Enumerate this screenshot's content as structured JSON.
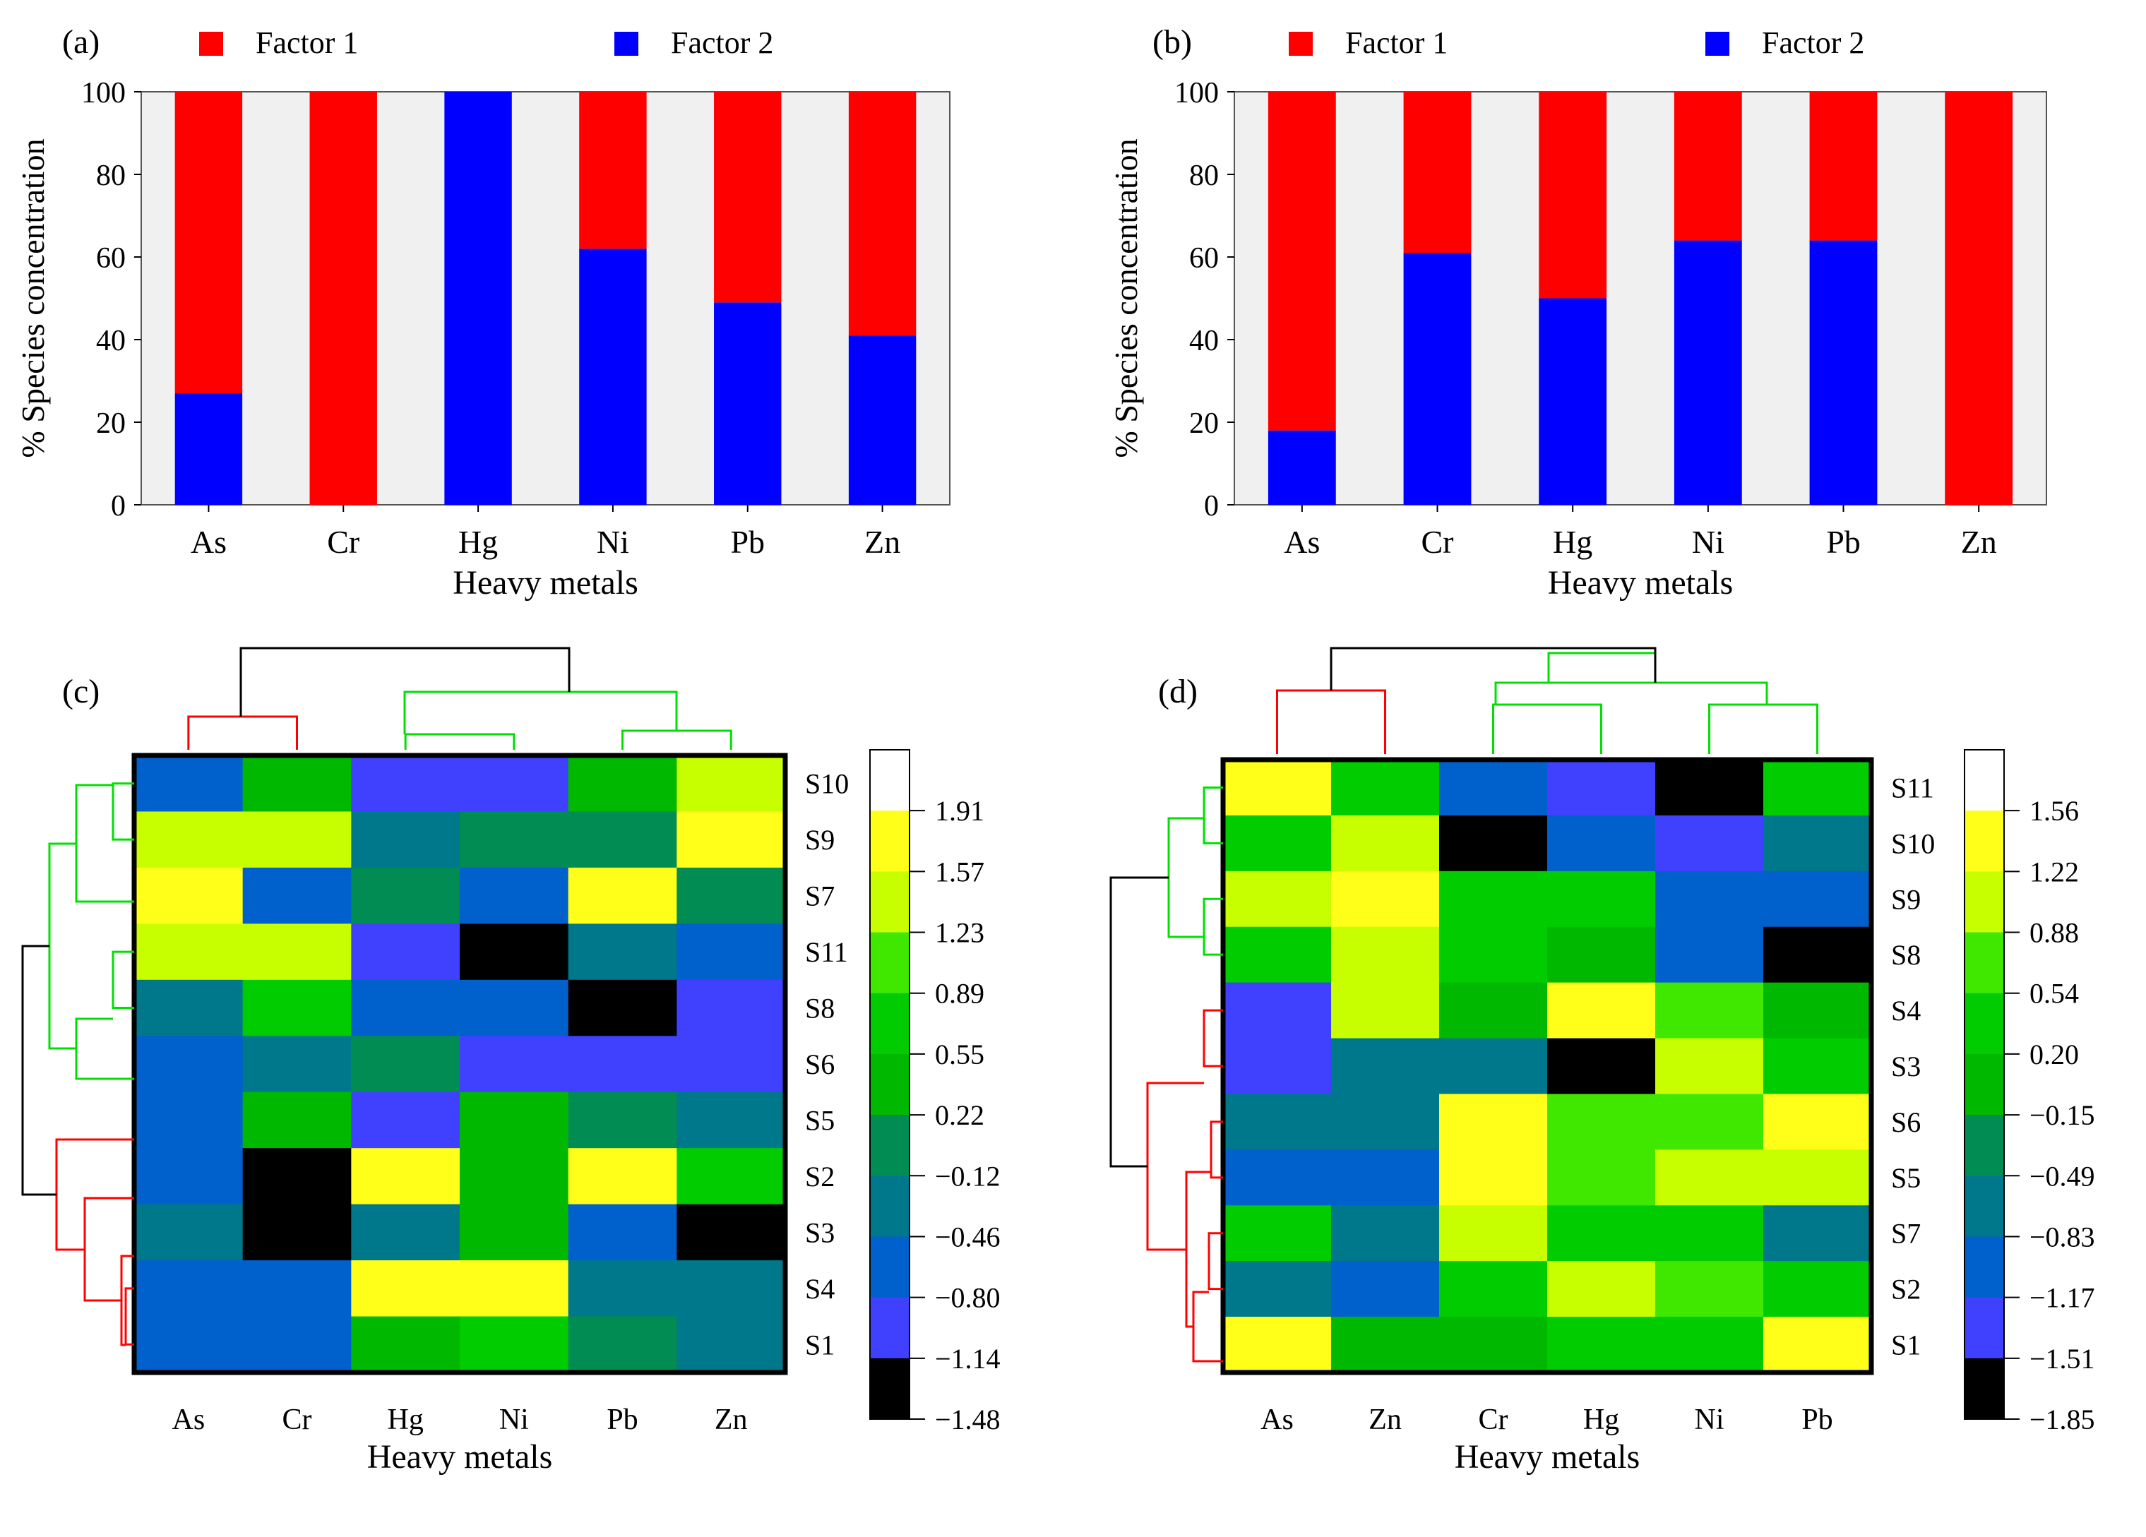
{
  "colors": {
    "factor1": "#ff0000",
    "factor2": "#0000ff",
    "plot_bg": "#f0f0f0",
    "cluster_red": "#ff0000",
    "cluster_green": "#00e000",
    "dendro_black": "#000000"
  },
  "chart_data": [
    {
      "id": "a",
      "type": "bar",
      "stacked": true,
      "panel_label": "(a)",
      "legend": [
        "Factor 1",
        "Factor 2"
      ],
      "xlabel": "Heavy metals",
      "ylabel": "% Species concentration",
      "ylim": [
        0,
        100
      ],
      "yticks": [
        0,
        20,
        40,
        60,
        80,
        100
      ],
      "categories": [
        "As",
        "Cr",
        "Hg",
        "Ni",
        "Pb",
        "Zn"
      ],
      "series": [
        {
          "name": "Factor 2",
          "values": [
            27,
            0,
            100,
            62,
            49,
            41
          ]
        },
        {
          "name": "Factor 1",
          "values": [
            73,
            100,
            0,
            38,
            51,
            59
          ]
        }
      ]
    },
    {
      "id": "b",
      "type": "bar",
      "stacked": true,
      "panel_label": "(b)",
      "legend": [
        "Factor 1",
        "Factor 2"
      ],
      "xlabel": "Heavy metals",
      "ylabel": "% Species concentration",
      "ylim": [
        0,
        100
      ],
      "yticks": [
        0,
        20,
        40,
        60,
        80,
        100
      ],
      "categories": [
        "As",
        "Cr",
        "Hg",
        "Ni",
        "Pb",
        "Zn"
      ],
      "series": [
        {
          "name": "Factor 2",
          "values": [
            18,
            61,
            50,
            64,
            64,
            0
          ]
        },
        {
          "name": "Factor 1",
          "values": [
            82,
            39,
            50,
            36,
            36,
            100
          ]
        }
      ]
    },
    {
      "id": "c",
      "type": "heatmap",
      "panel_label": "(c)",
      "xlabel": "Heavy metals",
      "columns": [
        "As",
        "Cr",
        "Hg",
        "Ni",
        "Pb",
        "Zn"
      ],
      "rows": [
        "S10",
        "S9",
        "S7",
        "S11",
        "S8",
        "S6",
        "S5",
        "S2",
        "S3",
        "S4",
        "S1"
      ],
      "colorbar_ticks": [
        "1.91",
        "1.57",
        "1.23",
        "0.89",
        "0.55",
        "0.22",
        "−0.12",
        "−0.46",
        "−0.80",
        "−1.14",
        "−1.48"
      ],
      "values": [
        [
          -0.63,
          0.38,
          -0.97,
          -0.97,
          0.38,
          1.4
        ],
        [
          1.4,
          1.4,
          -0.29,
          0.05,
          0.05,
          1.74
        ],
        [
          1.74,
          -0.63,
          0.05,
          -0.63,
          1.74,
          0.05
        ],
        [
          1.4,
          1.4,
          -0.97,
          -1.31,
          -0.29,
          -0.63
        ],
        [
          -0.29,
          0.72,
          -0.63,
          -0.63,
          -1.31,
          -0.97
        ],
        [
          -0.63,
          -0.29,
          0.05,
          -0.97,
          -0.97,
          -0.97
        ],
        [
          -0.63,
          0.38,
          -0.97,
          0.38,
          0.05,
          -0.29
        ],
        [
          -0.63,
          -1.31,
          1.74,
          0.38,
          1.74,
          0.72
        ],
        [
          -0.29,
          -1.31,
          -0.29,
          0.38,
          -0.63,
          -1.31
        ],
        [
          -0.63,
          -0.63,
          1.74,
          1.74,
          -0.29,
          -0.29
        ],
        [
          -0.63,
          -0.63,
          0.38,
          0.72,
          0.05,
          -0.29
        ]
      ]
    },
    {
      "id": "d",
      "type": "heatmap",
      "panel_label": "(d)",
      "xlabel": "Heavy metals",
      "columns": [
        "As",
        "Zn",
        "Cr",
        "Hg",
        "Ni",
        "Pb"
      ],
      "rows": [
        "S11",
        "S10",
        "S9",
        "S8",
        "S4",
        "S3",
        "S6",
        "S5",
        "S7",
        "S2",
        "S1"
      ],
      "colorbar_ticks": [
        "1.56",
        "1.22",
        "0.88",
        "0.54",
        "0.20",
        "−0.15",
        "−0.49",
        "−0.83",
        "−1.17",
        "−1.51",
        "−1.85"
      ],
      "values": [
        [
          1.39,
          0.37,
          -1.0,
          -1.34,
          -1.68,
          0.37
        ],
        [
          0.37,
          1.05,
          -1.68,
          -1.0,
          -1.34,
          -0.66
        ],
        [
          1.05,
          1.39,
          0.37,
          0.37,
          -1.0,
          -1.0
        ],
        [
          0.37,
          1.05,
          0.37,
          0.03,
          -1.0,
          -1.68
        ],
        [
          -1.34,
          1.05,
          0.03,
          1.39,
          0.71,
          0.03
        ],
        [
          -1.34,
          -0.66,
          -0.66,
          -1.68,
          1.05,
          0.37
        ],
        [
          -0.66,
          -0.66,
          1.39,
          0.71,
          0.71,
          1.39
        ],
        [
          -1.0,
          -1.0,
          1.39,
          0.71,
          1.05,
          1.05
        ],
        [
          0.37,
          -0.66,
          1.05,
          0.37,
          0.37,
          -0.66
        ],
        [
          -0.66,
          -1.0,
          0.37,
          1.05,
          0.71,
          0.37
        ],
        [
          1.39,
          0.03,
          0.03,
          0.37,
          0.37,
          1.39
        ]
      ]
    }
  ]
}
